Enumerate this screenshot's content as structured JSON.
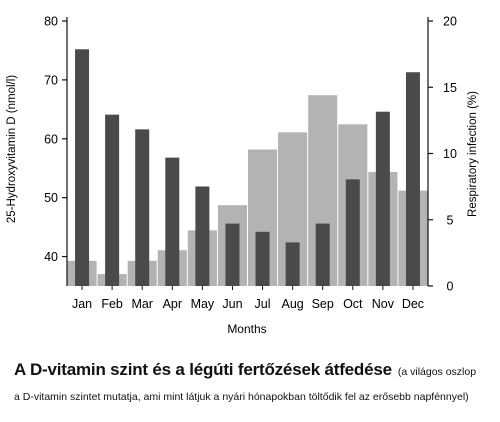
{
  "chart_data": {
    "type": "bar",
    "categories": [
      "Jan",
      "Feb",
      "Mar",
      "Apr",
      "May",
      "Jun",
      "Jul",
      "Aug",
      "Sep",
      "Oct",
      "Nov",
      "Dec"
    ],
    "xlabel": "Months",
    "ylabel_left": "25-Hydroxyvitamin D (nmol/l)",
    "ylabel_right": "Respiratory infection (%)",
    "ylim_left": [
      35,
      80
    ],
    "yticks_left": [
      40,
      50,
      60,
      70,
      80
    ],
    "ylim_right": [
      0,
      20
    ],
    "yticks_right": [
      0,
      5,
      10,
      15,
      20
    ],
    "grid": false,
    "series": [
      {
        "axis": "right",
        "color": "#b3b3b3",
        "values": [
          1.9,
          0.9,
          1.9,
          2.7,
          4.2,
          6.1,
          10.3,
          11.6,
          14.4,
          12.2,
          8.6,
          7.2
        ]
      },
      {
        "axis": "left",
        "color": "#4a4a4a",
        "values": [
          75.2,
          64.1,
          61.6,
          56.8,
          51.9,
          45.6,
          44.2,
          42.4,
          45.6,
          53.1,
          64.6,
          71.3
        ]
      }
    ]
  },
  "caption": {
    "title": "A D-vitamin szint és a légúti fertőzések átfedése",
    "note_line1": "(a világos oszlop",
    "note_line2": "a D-vitamin szintet mutatja, ami mint látjuk a nyári hónapokban töltődik fel az erősebb napfénnyel)"
  }
}
